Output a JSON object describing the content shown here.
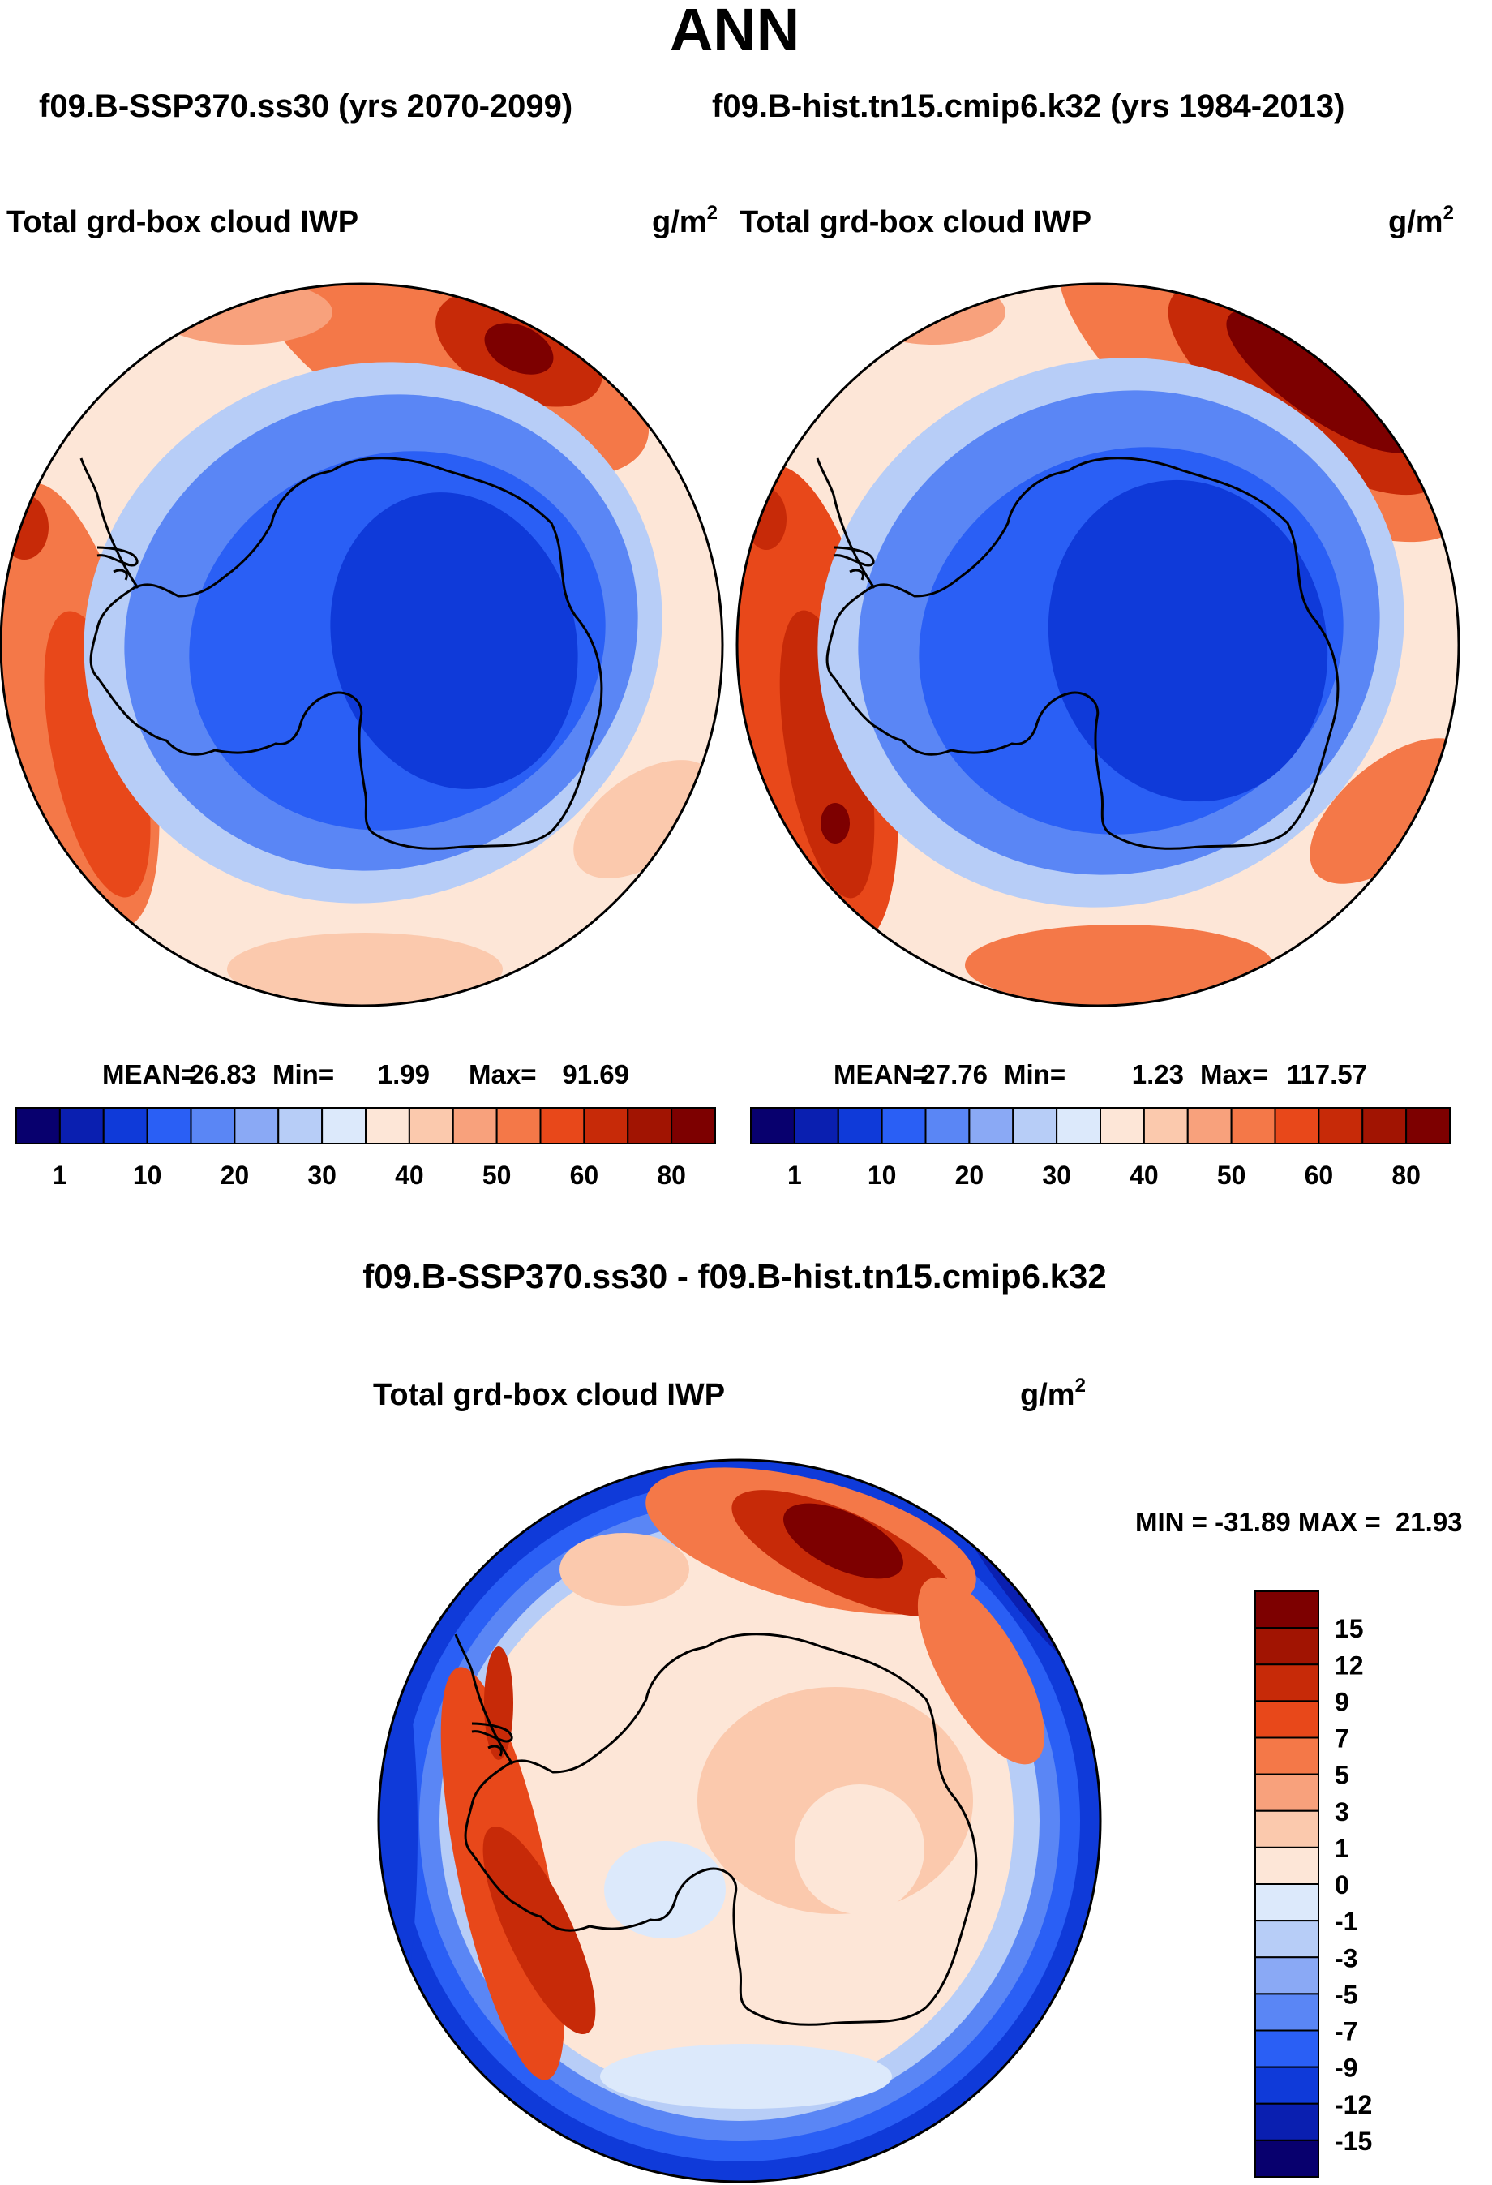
{
  "title": "ANN",
  "subtitle_left": "f09.B-SSP370.ss30 (yrs 2070-2099)",
  "subtitle_right": "f09.B-hist.tn15.cmip6.k32 (yrs 1984-2013)",
  "diff_title": "f09.B-SSP370.ss30 - f09.B-hist.tn15.cmip6.k32",
  "colors": {
    "abs_scale": [
      "#08006e",
      "#0a1fb0",
      "#0f3ad9",
      "#2a5ff5",
      "#5a86f5",
      "#8aa9f5",
      "#b7cdf7",
      "#dce9fb",
      "#fde6d7",
      "#fbc9ad",
      "#f8a17c",
      "#f47848",
      "#e8481a",
      "#c72a08",
      "#a11402",
      "#7d0000"
    ],
    "diff_scale": [
      "#08006e",
      "#0a1fb0",
      "#0f3ad9",
      "#2a5ff5",
      "#5a86f5",
      "#8aa9f5",
      "#b7cdf7",
      "#dce9fb",
      "#fde6d7",
      "#fbc9ad",
      "#f8a17c",
      "#f47848",
      "#e8481a",
      "#c72a08",
      "#a11402",
      "#7d0000"
    ]
  },
  "chart_data": [
    {
      "type": "heatmap",
      "panel": "left",
      "title": "Total grd-box cloud IWP",
      "units_base": "g/m",
      "units_exp": "2",
      "projection": "south polar stereographic",
      "stats": {
        "mean_label": "MEAN=",
        "mean": "26.83",
        "min_label": "Min=",
        "min": "1.99",
        "max_label": "Max=",
        "max": "91.69"
      },
      "stats_values": {
        "mean": 26.83,
        "min": 1.99,
        "max": 91.69
      },
      "colorbar_ticks": [
        "1",
        "10",
        "20",
        "30",
        "40",
        "50",
        "60",
        "80"
      ],
      "contour_levels": [
        1,
        5,
        10,
        15,
        20,
        25,
        30,
        35,
        40,
        45,
        50,
        55,
        60,
        70,
        80
      ]
    },
    {
      "type": "heatmap",
      "panel": "right",
      "title": "Total grd-box cloud IWP",
      "units_base": "g/m",
      "units_exp": "2",
      "projection": "south polar stereographic",
      "stats": {
        "mean_label": "MEAN=",
        "mean": "27.76",
        "min_label": "Min=",
        "min": "1.23",
        "max_label": "Max=",
        "max": "117.57"
      },
      "stats_values": {
        "mean": 27.76,
        "min": 1.23,
        "max": 117.57
      },
      "colorbar_ticks": [
        "1",
        "10",
        "20",
        "30",
        "40",
        "50",
        "60",
        "80"
      ],
      "contour_levels": [
        1,
        5,
        10,
        15,
        20,
        25,
        30,
        35,
        40,
        45,
        50,
        55,
        60,
        70,
        80
      ]
    },
    {
      "type": "heatmap",
      "panel": "difference",
      "title": "Total grd-box cloud IWP",
      "units_base": "g/m",
      "units_exp": "2",
      "projection": "south polar stereographic",
      "minmax_label": "MIN = -31.89 MAX =  21.93",
      "stats_values": {
        "min": -31.89,
        "max": 21.93
      },
      "colorbar_ticks": [
        "15",
        "12",
        "9",
        "7",
        "5",
        "3",
        "1",
        "0",
        "-1",
        "-3",
        "-5",
        "-7",
        "-9",
        "-12",
        "-15"
      ],
      "contour_levels": [
        -15,
        -12,
        -9,
        -7,
        -5,
        -3,
        -1,
        0,
        1,
        3,
        5,
        7,
        9,
        12,
        15
      ]
    }
  ]
}
